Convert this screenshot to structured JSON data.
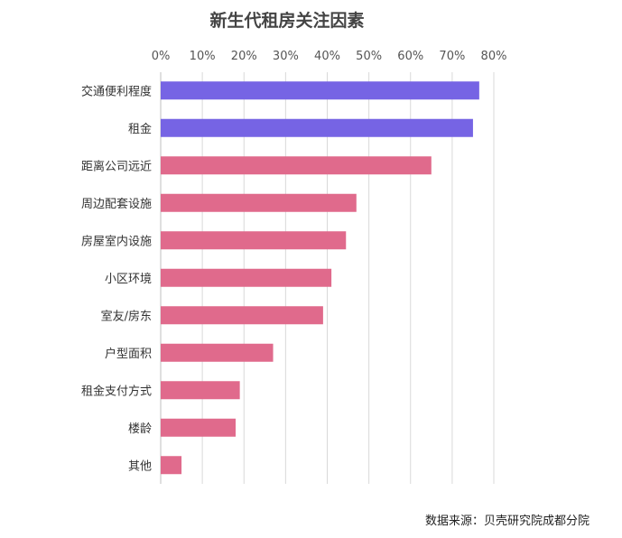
{
  "chart_data": {
    "type": "bar",
    "orientation": "horizontal",
    "title": "新生代租房关注因素",
    "categories": [
      "交通便利程度",
      "租金",
      "距离公司远近",
      "周边配套设施",
      "房屋室内设施",
      "小区环境",
      "室友/房东",
      "户型面积",
      "租金支付方式",
      "楼龄",
      "其他"
    ],
    "values": [
      76.5,
      75,
      65,
      47,
      44.5,
      41,
      39,
      27,
      19,
      18,
      5
    ],
    "unit": "%",
    "xlim": [
      0,
      80
    ],
    "x_ticks": [
      0,
      10,
      20,
      30,
      40,
      50,
      60,
      70,
      80
    ],
    "x_tick_labels": [
      "0%",
      "10%",
      "20%",
      "30%",
      "40%",
      "50%",
      "60%",
      "70%",
      "80%"
    ],
    "x_axis_position": "top",
    "grid": true,
    "highlight_count": 2,
    "colors": {
      "highlight": "#7664E4",
      "default": "#E06A8C"
    }
  },
  "source": "数据来源：贝壳研究院成都分院"
}
